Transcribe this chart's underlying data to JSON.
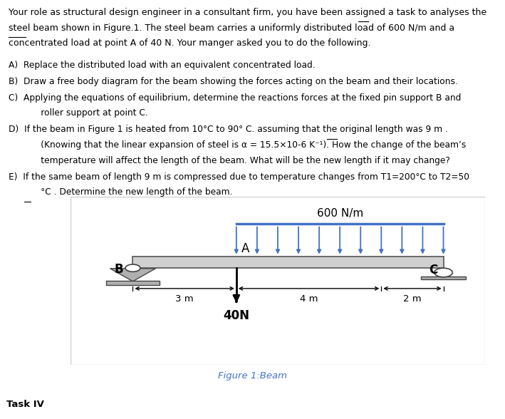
{
  "para_line1": "Your role as structural design engineer in a consultant firm, you have been assigned a task to analyses the",
  "para_line2": "steel beam shown in Figure.1. The steel beam carries a uniformly distributed load of 600 N/m and a",
  "para_line3": "concentrated load at point A of 40 N. Your manger asked you to do the following.",
  "item_A": "A)  Replace the distributed load with an equivalent concentrated load.",
  "item_B": "B)  Draw a free body diagram for the beam showing the forces acting on the beam and their locations.",
  "item_C1": "C)  Applying the equations of equilibrium, determine the reactions forces at the fixed pin support B and",
  "item_C2": "      roller support at point C.",
  "item_D1": "D)  If the beam in Figure 1 is heated from 10°C to 90° C. assuming that the original length was 9 m .",
  "item_D2": "      (Knowing that the linear expansion of steel is α = 15.5×10-6 K⁻¹). How the change of the beam’s",
  "item_D3": "      temperature will affect the length of the beam. What will be the new length if it may change?",
  "item_E1": "E)  If the same beam of length 9 m is compressed due to temperature changes from T1=200°C to T2=50",
  "item_E2": "      °C . Determine the new length of the beam.",
  "underline_the": "the",
  "underline_steel": "steel",
  "underline_9m": "9 m",
  "underline_degC": "°C",
  "distributed_load_label": "600 N/m",
  "dist_load_color": "#4472C4",
  "beam_fill": "#d0d0d0",
  "beam_edge": "#555555",
  "support_fill": "#b0b0b0",
  "support_edge": "#444444",
  "point_a": "A",
  "point_b": "B",
  "point_c": "C",
  "dim_3m": "3 m",
  "dim_4m": "4 m",
  "dim_2m": "2 m",
  "force_label": "40N",
  "figure_caption": "Figure 1:Beam",
  "caption_color": "#4472C4",
  "task_label": "Task IV",
  "bg_color": "#ffffff",
  "diagram_bg": "#f0f0f0",
  "text_color": "#000000",
  "font_size": 9.0,
  "item_font_size": 8.8
}
